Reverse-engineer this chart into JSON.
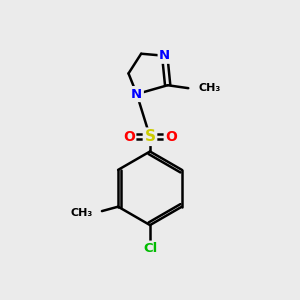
{
  "background_color": "#ebebeb",
  "atom_colors": {
    "N": "#0000ff",
    "O": "#ff0000",
    "S": "#cccc00",
    "Cl": "#00bb00",
    "C": "#000000"
  },
  "bond_lw": 1.8,
  "font_size": 9.5
}
